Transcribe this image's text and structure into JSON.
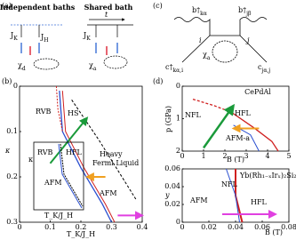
{
  "a": {
    "label": "(a)",
    "left_title": "Independent baths",
    "right_title": "Shared bath",
    "jk_left": [
      "J",
      "K"
    ],
    "jh_left": [
      "J",
      "H"
    ],
    "t": "t",
    "jk_right": [
      "J",
      "K"
    ],
    "chi_d": [
      "χ",
      "d"
    ],
    "chi_a": [
      "χ",
      "a"
    ]
  },
  "b": {
    "label": "(b)",
    "xlabel": "T_K/J_H",
    "ylabel": "κ",
    "xlim": [
      0,
      0.4
    ],
    "ylim": [
      0,
      0.3
    ],
    "xticks": [
      0,
      0.1,
      0.2,
      0.3,
      0.4
    ],
    "yticks": [
      0,
      0.1,
      0.2,
      0.3
    ],
    "rvb": "RVB",
    "hs": "HS",
    "heavy": "Heavy",
    "fermi": "Fermi Liquid",
    "afm": "AFM",
    "inset": {
      "rvb": "RVB",
      "hfl": "HFL",
      "afm": "AFM",
      "xlabel": "T_K/J_H",
      "ylabel": "κ"
    }
  },
  "c": {
    "label": "(c)",
    "b_left": [
      "b†",
      "kα"
    ],
    "b_right": [
      "b†",
      "jβ"
    ],
    "i": "i",
    "j": "j",
    "chi_a": [
      "χ",
      "a"
    ],
    "c_left": [
      "c†",
      "kα,i"
    ],
    "c_right": [
      "c",
      "jα,j"
    ]
  },
  "d": {
    "label": "(d)",
    "top": {
      "title": "CePdAl",
      "xlabel": "B (T)",
      "ylabel": "p (GPa)",
      "xlim": [
        0,
        5
      ],
      "ylim": [
        0,
        2
      ],
      "xticks": [
        0,
        1,
        2,
        3,
        4,
        5
      ],
      "yticks": [
        0,
        1,
        2
      ],
      "nfl": "NFL",
      "hfl": "HFL",
      "afm": "AFM-a"
    },
    "bottom": {
      "title": "Yb(Rh₁₋ₓIrₓ)₂Si₂",
      "xlabel": "B (T)",
      "ylabel": "y",
      "xlim": [
        0,
        0.08
      ],
      "ylim": [
        0,
        0.06
      ],
      "xticks": [
        0,
        0.02,
        0.04,
        0.06,
        0.08
      ],
      "yticks": [
        0,
        0.02,
        0.04,
        0.06
      ],
      "afm": "AFM",
      "nfl": "NFL",
      "hfl": "HFL"
    }
  }
}
